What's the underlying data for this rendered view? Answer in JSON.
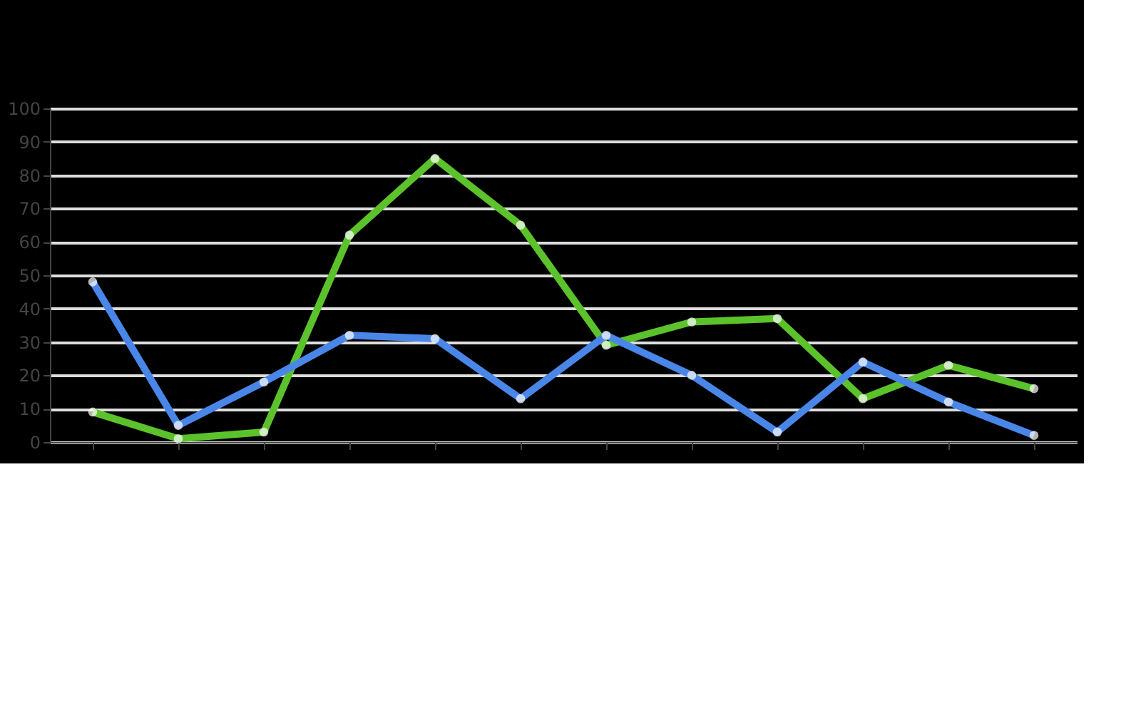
{
  "chart_data": {
    "type": "line",
    "categories": [
      null,
      null,
      null,
      null,
      null,
      null,
      null,
      null,
      null,
      null,
      null,
      null
    ],
    "series": [
      {
        "color": "#5cc22c",
        "values": [
          9,
          1,
          3,
          62,
          85,
          65,
          29,
          36,
          37,
          13,
          23,
          16
        ]
      },
      {
        "color": "#4a86e8",
        "values": [
          48,
          5,
          18,
          32,
          31,
          13,
          32,
          20,
          3,
          24,
          12,
          2
        ]
      }
    ],
    "ylim": [
      0,
      100
    ],
    "yticks": [
      0,
      10,
      20,
      30,
      40,
      50,
      60,
      70,
      80,
      90,
      100
    ],
    "grid": "y",
    "marker": "circle",
    "line_style": "solid"
  }
}
